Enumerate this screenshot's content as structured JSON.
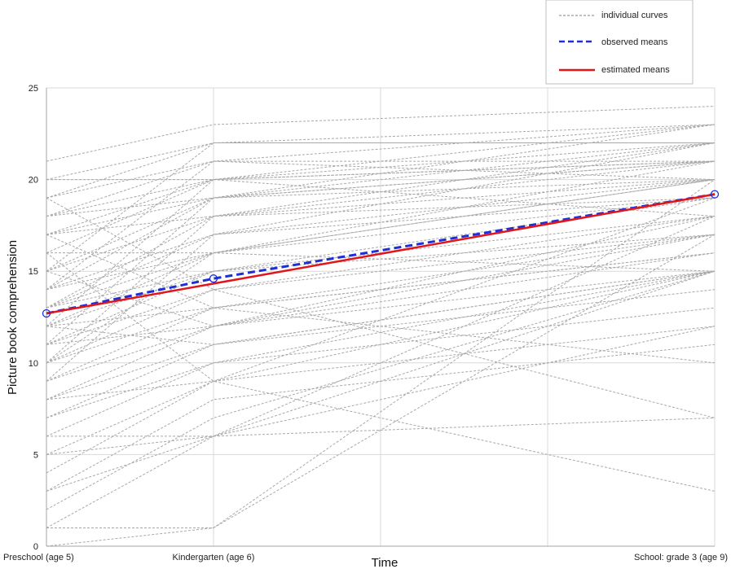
{
  "chart_data": {
    "type": "line",
    "xlabel": "Time",
    "ylabel": "Picture book comprehension",
    "ylim": [
      0,
      25
    ],
    "yticks": [
      "0",
      "5",
      "10",
      "15",
      "20",
      "25"
    ],
    "x_positions": [
      0,
      1,
      2,
      3,
      4
    ],
    "x_tick_labels": [
      {
        "x": 0,
        "label": "Preschool (age 5)"
      },
      {
        "x": 1,
        "label": "Kindergarten (age 6)"
      },
      {
        "x": 4,
        "label": "School: grade 3 (age 9)"
      }
    ],
    "xlim": [
      0,
      4
    ],
    "grid": true,
    "legend_position": "top-right",
    "legend": [
      {
        "label": "individual curves",
        "style": "gray-dotted"
      },
      {
        "label": "observed means",
        "style": "blue-dashed"
      },
      {
        "label": "estimated means",
        "style": "red-solid"
      }
    ],
    "individual_x": [
      0,
      1,
      4
    ],
    "individual_curves": [
      [
        21,
        23,
        24
      ],
      [
        20,
        22,
        23
      ],
      [
        19,
        22,
        22
      ],
      [
        18,
        21,
        23
      ],
      [
        17,
        20,
        21
      ],
      [
        16,
        20,
        22
      ],
      [
        15,
        19,
        21
      ],
      [
        15,
        18,
        20
      ],
      [
        14,
        19,
        22
      ],
      [
        14,
        17,
        20
      ],
      [
        13,
        18,
        21
      ],
      [
        13,
        16,
        19
      ],
      [
        12,
        16,
        20
      ],
      [
        12,
        15,
        18
      ],
      [
        11,
        15,
        19
      ],
      [
        11,
        14,
        17
      ],
      [
        10,
        14,
        18
      ],
      [
        10,
        13,
        16
      ],
      [
        9,
        13,
        17
      ],
      [
        9,
        12,
        15
      ],
      [
        8,
        12,
        16
      ],
      [
        8,
        11,
        15
      ],
      [
        7,
        11,
        14
      ],
      [
        7,
        10,
        13
      ],
      [
        6,
        10,
        15
      ],
      [
        5,
        9,
        15
      ],
      [
        4,
        9,
        12
      ],
      [
        3,
        8,
        11
      ],
      [
        2,
        7,
        15
      ],
      [
        1,
        6,
        18
      ],
      [
        0,
        1,
        20
      ],
      [
        1,
        1,
        17
      ],
      [
        19,
        14,
        7
      ],
      [
        17,
        13,
        10
      ],
      [
        16,
        9,
        3
      ],
      [
        18,
        20,
        21
      ],
      [
        15,
        22,
        22
      ],
      [
        12,
        20,
        23
      ],
      [
        10,
        18,
        22
      ],
      [
        14,
        21,
        20
      ],
      [
        13,
        17,
        22
      ],
      [
        11,
        19,
        21
      ],
      [
        9,
        17,
        19
      ],
      [
        12,
        13,
        16
      ],
      [
        16,
        16,
        15
      ],
      [
        20,
        20,
        18
      ],
      [
        18,
        19,
        20
      ],
      [
        17,
        18,
        19
      ],
      [
        19,
        21,
        21
      ],
      [
        11,
        12,
        18
      ],
      [
        13,
        15,
        17
      ],
      [
        14,
        16,
        21
      ],
      [
        6,
        6,
        7
      ],
      [
        5,
        6,
        12
      ],
      [
        3,
        6,
        15
      ],
      [
        8,
        9,
        19
      ],
      [
        15,
        12,
        17
      ],
      [
        12,
        11,
        15
      ],
      [
        10,
        16,
        20
      ],
      [
        17,
        19,
        23
      ]
    ],
    "series": [
      {
        "name": "observed means",
        "x": [
          0,
          1,
          4
        ],
        "values": [
          12.7,
          14.6,
          19.2
        ]
      },
      {
        "name": "estimated means",
        "x": [
          0,
          4
        ],
        "values": [
          12.7,
          19.2
        ]
      }
    ]
  }
}
